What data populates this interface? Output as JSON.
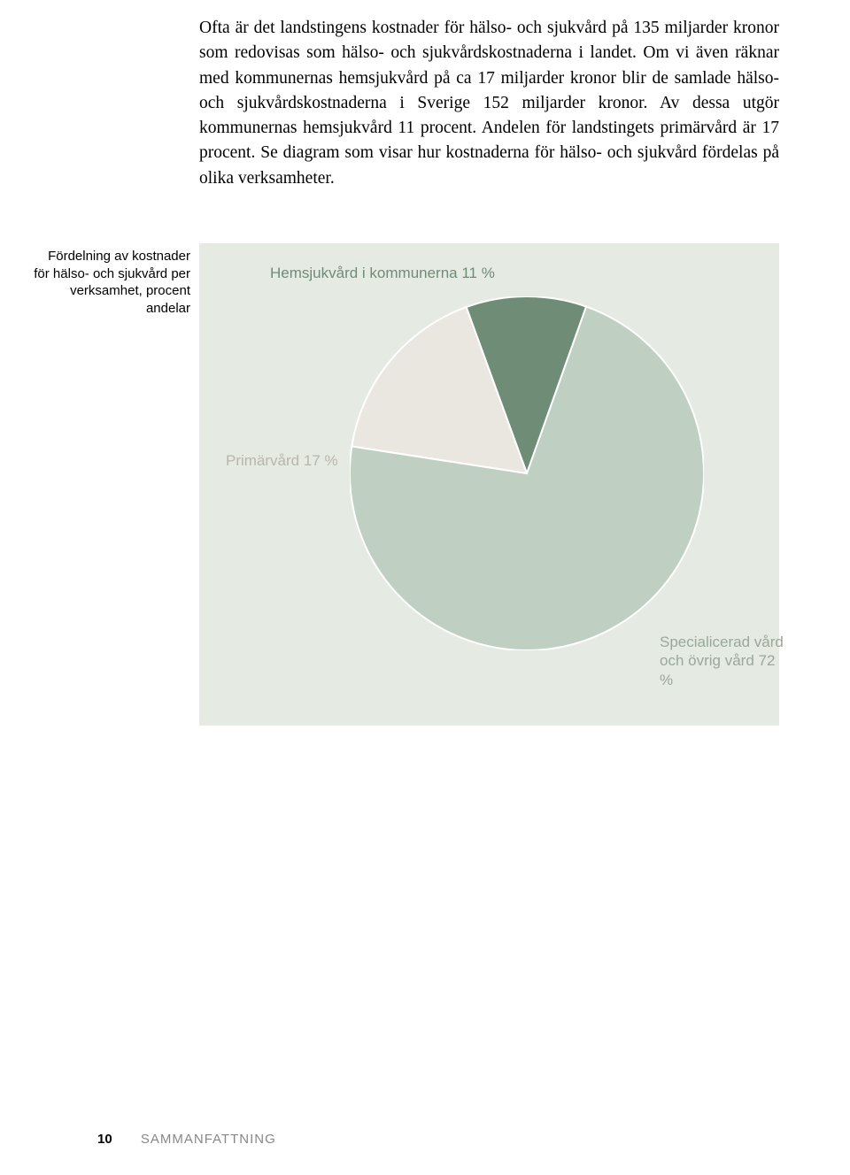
{
  "body_text": "Ofta är det landstingens kostnader för hälso- och sjukvård på 135 miljarder kronor som redovisas som hälso- och sjukvårdskostnaderna i landet. Om vi även räknar med kommunernas hemsjukvård på ca 17 miljarder kronor blir de samlade hälso- och sjukvårdskostnaderna i Sverige 152 miljarder kronor. Av dessa utgör kommunernas hemsjukvård 11 procent. Andelen för landstingets primärvård är 17 procent. Se diagram som visar hur kostnaderna för hälso- och sjukvård fördelas på olika verksamheter.",
  "caption": {
    "line1": "Fördelning av kostnader",
    "line2": "för hälso- och sjukvård per",
    "line3": "verksamhet, procent andelar"
  },
  "chart": {
    "type": "pie",
    "background_color": "#e5ebe2",
    "slices": [
      {
        "key": "hemsjukvard",
        "label": "Hemsjukvård i kommunerna 11 %",
        "value": 11,
        "color": "#6e8c76",
        "label_color": "#6e8c76"
      },
      {
        "key": "specialicerad",
        "label": "Specialicerad vård och övrig vård 72 %",
        "value": 72,
        "color": "#bfcfc1",
        "label_color": "#9aa79a"
      },
      {
        "key": "primarvard",
        "label": "Primärvård 17 %",
        "value": 17,
        "color": "#e9e7e0",
        "label_color": "#b8b6ac"
      }
    ],
    "stroke_color": "#ffffff",
    "stroke_width": 2,
    "start_angle_deg": -20,
    "label_fontsize": 17,
    "label_font": "Gill Sans"
  },
  "footer": {
    "page_number": "10",
    "section": "SAMMANFATTNING"
  }
}
